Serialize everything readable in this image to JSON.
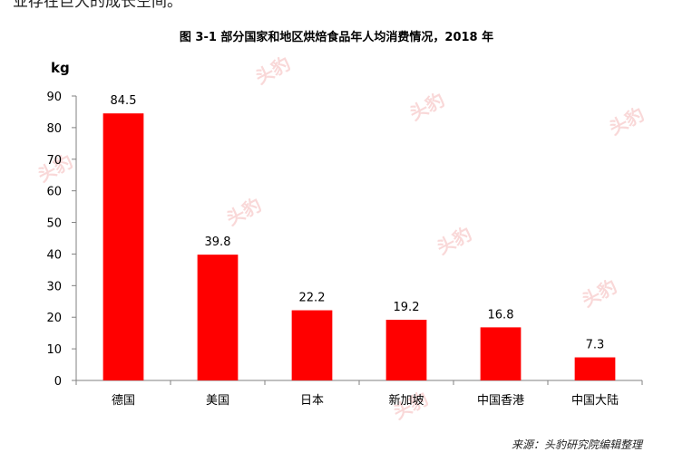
{
  "page": {
    "top_text": "业存在巨大的成长空间。",
    "figure_title": "图 3-1 部分国家和地区烘焙食品年人均消费情况，2018 年",
    "source": "来源：头豹研究院编辑整理",
    "watermark": "头豹"
  },
  "chart_data": {
    "type": "bar",
    "title": "图 3-1 部分国家和地区烘焙食品年人均消费情况，2018 年",
    "xlabel": "",
    "ylabel": "kg",
    "categories": [
      "德国",
      "美国",
      "日本",
      "新加坡",
      "中国香港",
      "中国大陆"
    ],
    "values": [
      84.5,
      39.8,
      22.2,
      19.2,
      16.8,
      7.3
    ],
    "value_labels": [
      "84.5",
      "39.8",
      "22.2",
      "19.2",
      "16.8",
      "7.3"
    ],
    "ylim": [
      0,
      90
    ],
    "yticks": [
      0,
      10,
      20,
      30,
      40,
      50,
      60,
      70,
      80,
      90
    ],
    "bar_color": "#ff0000",
    "grid": false,
    "legend": "none"
  }
}
